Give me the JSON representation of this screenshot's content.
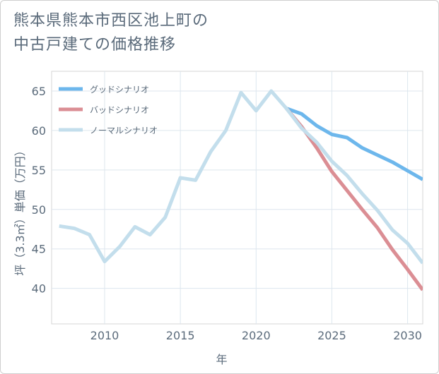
{
  "chart_data": {
    "type": "line",
    "title": [
      "熊本県熊本市西区池上町の",
      "中古戸建ての価格推移"
    ],
    "xlabel": "年",
    "ylabel": "坪（3.3㎡）単価（万円）",
    "xlim": [
      2006.5,
      2031
    ],
    "ylim": [
      35.5,
      67.5
    ],
    "xticks": [
      2010,
      2015,
      2020,
      2025,
      2030
    ],
    "yticks": [
      40,
      45,
      50,
      55,
      60,
      65
    ],
    "grid": true,
    "legend_position": "top-left",
    "series": [
      {
        "name": "グッドシナリオ",
        "color": "#6db7ec",
        "x": [
          2022,
          2023,
          2024,
          2025,
          2026,
          2027,
          2028,
          2029,
          2030,
          2031
        ],
        "y": [
          62.8,
          62.1,
          60.6,
          59.5,
          59.1,
          57.8,
          56.9,
          56.0,
          54.9,
          53.8
        ]
      },
      {
        "name": "バッドシナリオ",
        "color": "#db8e94",
        "x": [
          2022,
          2023,
          2024,
          2025,
          2026,
          2027,
          2028,
          2029,
          2030,
          2031
        ],
        "y": [
          62.8,
          60.5,
          57.8,
          54.8,
          52.4,
          50.0,
          47.7,
          44.9,
          42.4,
          39.8
        ]
      },
      {
        "name": "ノーマルシナリオ",
        "color": "#c3deec",
        "x": [
          2007,
          2008,
          2009,
          2010,
          2011,
          2012,
          2013,
          2014,
          2015,
          2016,
          2017,
          2018,
          2019,
          2020,
          2021,
          2022,
          2023,
          2024,
          2025,
          2026,
          2027,
          2028,
          2029,
          2030,
          2031
        ],
        "y": [
          47.9,
          47.6,
          46.8,
          43.4,
          45.3,
          47.8,
          46.8,
          49.0,
          54.0,
          53.7,
          57.3,
          60.0,
          64.8,
          62.5,
          65.0,
          62.8,
          60.3,
          58.5,
          56.1,
          54.3,
          52.0,
          49.9,
          47.4,
          45.7,
          43.2
        ]
      }
    ]
  }
}
